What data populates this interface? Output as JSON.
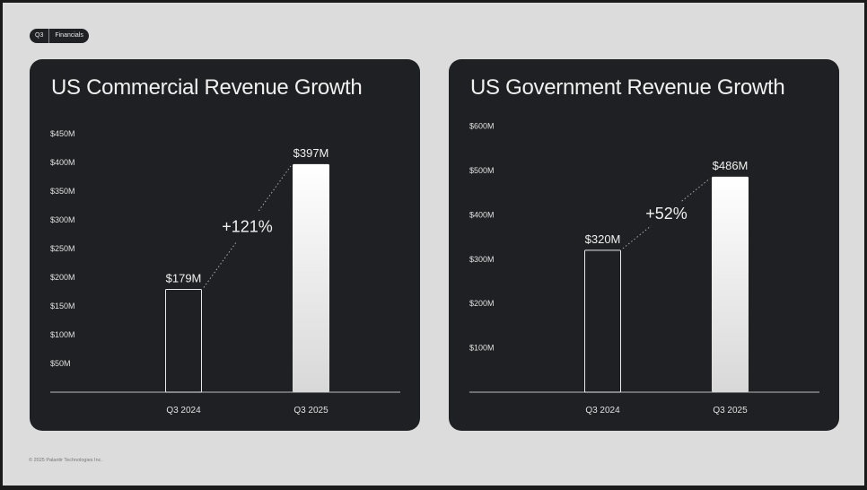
{
  "header": {
    "badge_left": "Q3",
    "badge_right": "Financials"
  },
  "footer": {
    "copyright": "© 2025 Palantir Technologies Inc."
  },
  "colors": {
    "card": "#1f2023",
    "page": "#dcdcdc",
    "bar": "#ffffff"
  },
  "chart_data": [
    {
      "type": "bar",
      "title": "US Commercial Revenue Growth",
      "categories": [
        "Q3 2024",
        "Q3 2025"
      ],
      "values": [
        179,
        397
      ],
      "value_labels": [
        "$179M",
        "$397M"
      ],
      "growth_label": "+121%",
      "ylabel": "",
      "xlabel": "",
      "ylim": [
        0,
        450
      ],
      "yticks": [
        50,
        100,
        150,
        200,
        250,
        300,
        350,
        400,
        450
      ],
      "ytick_labels": [
        "$50M",
        "$100M",
        "$150M",
        "$200M",
        "$250M",
        "$300M",
        "$350M",
        "$400M",
        "$450M"
      ],
      "grid": false
    },
    {
      "type": "bar",
      "title": "US Government Revenue Growth",
      "categories": [
        "Q3 2024",
        "Q3 2025"
      ],
      "values": [
        320,
        486
      ],
      "value_labels": [
        "$320M",
        "$486M"
      ],
      "growth_label": "+52%",
      "ylabel": "",
      "xlabel": "",
      "ylim": [
        0,
        600
      ],
      "yticks": [
        100,
        200,
        300,
        400,
        500,
        600
      ],
      "ytick_labels": [
        "$100M",
        "$200M",
        "$300M",
        "$400M",
        "$500M",
        "$600M"
      ],
      "grid": false
    }
  ]
}
